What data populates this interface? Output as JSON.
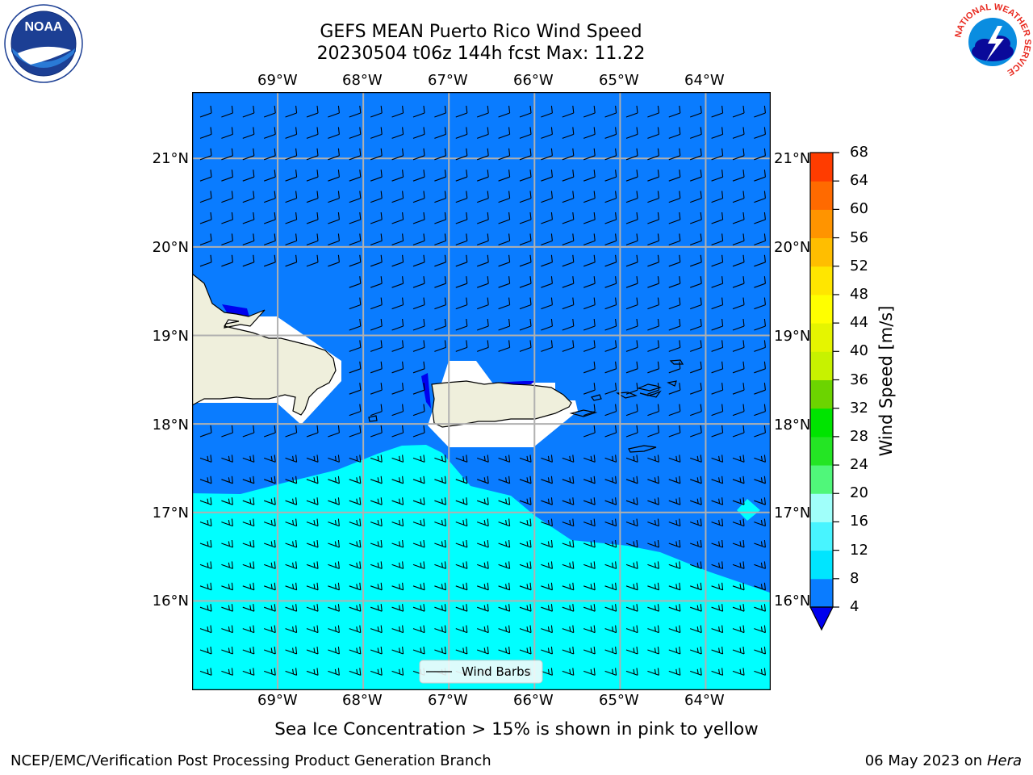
{
  "title": {
    "line1": "GEFS MEAN Puerto Rico Wind Speed",
    "line2": "20230504 t06z 144h fcst   Max: 11.22"
  },
  "map": {
    "lon_labels": [
      "69°W",
      "68°W",
      "67°W",
      "66°W",
      "65°W",
      "64°W"
    ],
    "lat_labels": [
      "21°N",
      "20°N",
      "19°N",
      "18°N",
      "17°N",
      "16°N"
    ],
    "lon_range": [
      -70.0,
      -63.25
    ],
    "lat_range": [
      15.0,
      21.75
    ],
    "legend_label": "Wind Barbs",
    "wind_direction": "easterly"
  },
  "colorbar": {
    "title": "Wind Speed [m/s]",
    "ticks": [
      "68",
      "64",
      "60",
      "56",
      "52",
      "48",
      "44",
      "40",
      "36",
      "32",
      "28",
      "24",
      "20",
      "16",
      "12",
      "8",
      "4"
    ],
    "colors_low_to_high": [
      "#0a7cff",
      "#00e5ff",
      "#48f4ff",
      "#a0fffa",
      "#50f77a",
      "#24e524",
      "#00e400",
      "#6cd400",
      "#c7f200",
      "#e5f500",
      "#ffff00",
      "#ffe600",
      "#ffbe00",
      "#ff9400",
      "#ff6a00",
      "#ff3c00",
      "#ff0000"
    ],
    "under_color": "#0000ee"
  },
  "colors": {
    "ocean_low": "#0a7cff",
    "ocean_mid": "#00ffff",
    "land": "#efefdc",
    "no_data": "#ffffff"
  },
  "note": "Sea Ice Concentration > 15% is shown in pink to yellow",
  "footer": {
    "left": "NCEP/EMC/Verification Post Processing Product Generation Branch",
    "right_date": "06 May 2023 on",
    "right_machine": "Hera"
  },
  "logos": {
    "noaa": "NOAA",
    "nws": "NATIONAL WEATHER SERVICE"
  }
}
